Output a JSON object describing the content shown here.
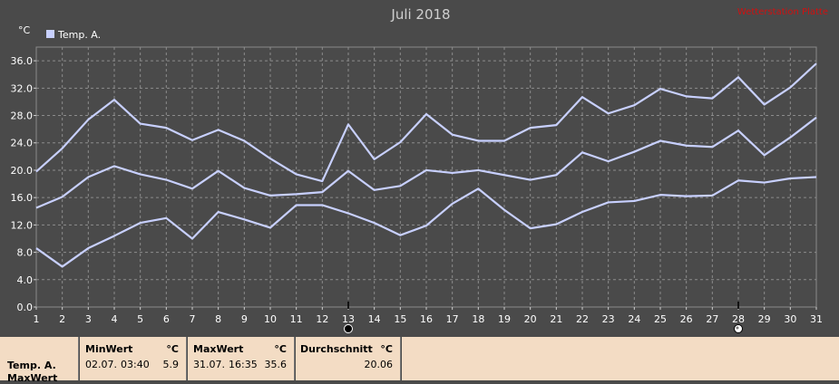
{
  "chart_data": {
    "type": "line",
    "title": "Juli 2018",
    "watermark": "Wetterstation Platte",
    "yunit": "°C",
    "ylim": [
      0,
      38
    ],
    "yticks": [
      "0.0",
      "4.0",
      "8.0",
      "12.0",
      "16.0",
      "20.0",
      "24.0",
      "28.0",
      "32.0",
      "36.0"
    ],
    "x": [
      1,
      2,
      3,
      4,
      5,
      6,
      7,
      8,
      9,
      10,
      11,
      12,
      13,
      14,
      15,
      16,
      17,
      18,
      19,
      20,
      21,
      22,
      23,
      24,
      25,
      26,
      27,
      28,
      29,
      30,
      31
    ],
    "legend": "Temp. A.",
    "legend_position": "top-left",
    "grid": true,
    "series": [
      {
        "role": "max",
        "values": [
          19.8,
          23.2,
          27.4,
          30.3,
          26.8,
          26.2,
          24.4,
          25.9,
          24.3,
          21.7,
          19.4,
          18.4,
          26.7,
          21.6,
          24.1,
          28.2,
          25.2,
          24.3,
          24.3,
          26.2,
          26.6,
          30.7,
          28.3,
          29.5,
          31.9,
          30.8,
          30.5,
          33.6,
          29.6,
          32.1,
          35.6
        ]
      },
      {
        "role": "avg",
        "values": [
          14.5,
          16.1,
          19.0,
          20.6,
          19.4,
          18.6,
          17.3,
          19.9,
          17.4,
          16.3,
          16.5,
          16.8,
          19.9,
          17.1,
          17.7,
          20.0,
          19.6,
          20.0,
          19.3,
          18.6,
          19.3,
          22.6,
          21.3,
          22.7,
          24.3,
          23.6,
          23.4,
          25.8,
          22.2,
          24.8,
          27.7
        ]
      },
      {
        "role": "min",
        "values": [
          8.6,
          5.9,
          8.6,
          10.4,
          12.3,
          13.0,
          10.0,
          13.9,
          12.8,
          11.6,
          14.9,
          14.9,
          13.7,
          12.3,
          10.5,
          11.9,
          15.1,
          17.3,
          14.2,
          11.5,
          12.1,
          13.9,
          15.3,
          15.5,
          16.4,
          16.2,
          16.3,
          18.5,
          18.2,
          18.8,
          19.0
        ]
      }
    ],
    "moon_markers": [
      {
        "day": 13,
        "phase": "new-moon"
      },
      {
        "day": 28,
        "phase": "full-moon"
      }
    ]
  },
  "footer": {
    "row_label": "Temp. A.",
    "row_sublabel": "MaxWert",
    "min": {
      "title": "MinWert",
      "unit": "°C",
      "date": "02.07.",
      "time": "03:40",
      "value": "5.9"
    },
    "max": {
      "title": "MaxWert",
      "unit": "°C",
      "date": "31.07.",
      "time": "16:35",
      "value": "35.6"
    },
    "avg": {
      "title": "Durchschnitt",
      "unit": "°C",
      "value": "20.06"
    }
  },
  "colors": {
    "background": "#4a4a4a",
    "line": "#c8d0ff",
    "axis_text": "#ffffff",
    "title": "#cfcfcf",
    "watermark": "#d01010",
    "footer": "#f3dcc4"
  }
}
